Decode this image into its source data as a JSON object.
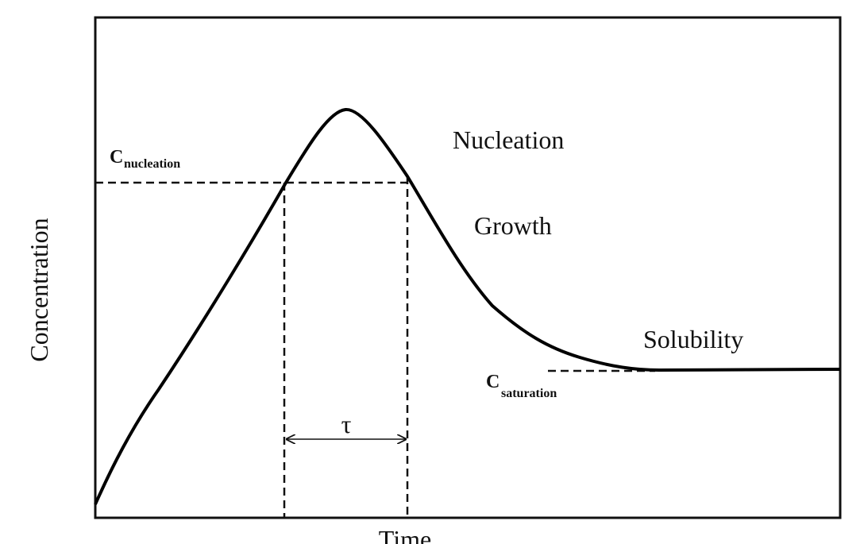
{
  "axes": {
    "y_label": "Concentration",
    "x_label": "Time"
  },
  "labels": {
    "nucleation": "Nucleation",
    "growth": "Growth",
    "solubility": "Solubility",
    "tau": "τ"
  },
  "c_nucleation": {
    "symbol": "C",
    "subscript": "nucleation"
  },
  "c_saturation": {
    "symbol": "C",
    "subscript": "saturation"
  }
}
